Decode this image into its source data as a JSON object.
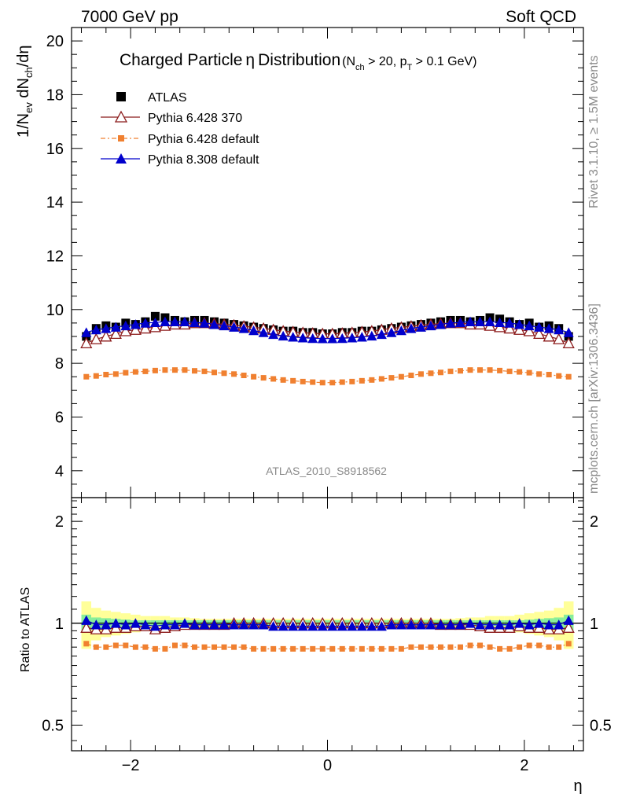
{
  "header": {
    "left": "7000 GeV pp",
    "right": "Soft QCD"
  },
  "side": {
    "rivet": "Rivet 3.1.10, ≥ 1.5M events",
    "mcplots": "mcplots.cern.ch [arXiv:1306.3436]"
  },
  "title": {
    "main": "Charged Particle",
    "eta": "η",
    "after": "Distribution",
    "cut_open": "(N",
    "cut_sub1": "ch",
    "cut_mid": " > 20, p",
    "cut_sub2": "T",
    "cut_end": " > 0.1 GeV)"
  },
  "watermark": "ATLAS_2010_S8918562",
  "legend": {
    "entries": [
      {
        "label": "ATLAS",
        "color": "#000000",
        "marker": "square"
      },
      {
        "label": "Pythia 6.428 370",
        "color": "#8b1a1a",
        "marker": "open-triangle"
      },
      {
        "label": "Pythia 6.428 default",
        "color": "#f08030",
        "marker": "small-square"
      },
      {
        "label": "Pythia 8.308 default",
        "color": "#0000cc",
        "marker": "triangle"
      }
    ]
  },
  "axes": {
    "ylabel_main": "1/N",
    "ylabel_sub_ev": "ev",
    "ylabel_dN": " dN",
    "ylabel_sub_ch": "ch",
    "ylabel_end": "/dη",
    "ylabel_ratio": "Ratio to ATLAS",
    "xlabel": "η"
  },
  "chart_data": {
    "type": "scatter",
    "x_range": [
      -2.6,
      2.6
    ],
    "main_y_range": [
      3,
      20.5
    ],
    "ratio_y_range": [
      0.42,
      2.35
    ],
    "ratio_log_scale": true,
    "main_y_ticks": [
      4,
      6,
      8,
      10,
      12,
      14,
      16,
      18,
      20
    ],
    "ratio_y_ticks": [
      0.5,
      1,
      2
    ],
    "ratio_tick_labels": [
      "0.5",
      "1",
      "2"
    ],
    "x_ticks": [
      -2,
      0,
      2
    ],
    "x_tick_labels": [
      "−2",
      "0",
      "2"
    ],
    "eta": [
      -2.45,
      -2.35,
      -2.25,
      -2.15,
      -2.05,
      -1.95,
      -1.85,
      -1.75,
      -1.65,
      -1.55,
      -1.45,
      -1.35,
      -1.25,
      -1.15,
      -1.05,
      -0.95,
      -0.85,
      -0.75,
      -0.65,
      -0.55,
      -0.45,
      -0.35,
      -0.25,
      -0.15,
      -0.05,
      0.05,
      0.15,
      0.25,
      0.35,
      0.45,
      0.55,
      0.65,
      0.75,
      0.85,
      0.95,
      1.05,
      1.15,
      1.25,
      1.35,
      1.45,
      1.55,
      1.65,
      1.75,
      1.85,
      1.95,
      2.05,
      2.15,
      2.25,
      2.35,
      2.45
    ],
    "series": [
      {
        "name": "ATLAS",
        "values": [
          9.0,
          9.3,
          9.4,
          9.35,
          9.5,
          9.45,
          9.55,
          9.75,
          9.7,
          9.6,
          9.55,
          9.6,
          9.6,
          9.55,
          9.5,
          9.45,
          9.4,
          9.35,
          9.3,
          9.25,
          9.2,
          9.2,
          9.15,
          9.15,
          9.1,
          9.1,
          9.15,
          9.15,
          9.2,
          9.2,
          9.25,
          9.3,
          9.35,
          9.4,
          9.45,
          9.5,
          9.55,
          9.6,
          9.6,
          9.55,
          9.6,
          9.7,
          9.65,
          9.55,
          9.45,
          9.5,
          9.35,
          9.4,
          9.3,
          9.0
        ]
      },
      {
        "name": "Pythia 6.428 370",
        "values": [
          8.75,
          8.9,
          9.0,
          9.1,
          9.2,
          9.25,
          9.3,
          9.35,
          9.4,
          9.45,
          9.45,
          9.5,
          9.5,
          9.48,
          9.45,
          9.42,
          9.38,
          9.34,
          9.3,
          9.25,
          9.2,
          9.17,
          9.14,
          9.12,
          9.1,
          9.1,
          9.12,
          9.14,
          9.17,
          9.2,
          9.25,
          9.3,
          9.34,
          9.38,
          9.42,
          9.45,
          9.48,
          9.5,
          9.5,
          9.45,
          9.45,
          9.4,
          9.35,
          9.3,
          9.25,
          9.2,
          9.1,
          9.0,
          8.9,
          8.75
        ]
      },
      {
        "name": "Pythia 6.428 default",
        "values": [
          7.5,
          7.53,
          7.58,
          7.6,
          7.65,
          7.68,
          7.7,
          7.73,
          7.75,
          7.75,
          7.75,
          7.72,
          7.7,
          7.66,
          7.63,
          7.6,
          7.55,
          7.5,
          7.46,
          7.42,
          7.38,
          7.35,
          7.32,
          7.3,
          7.28,
          7.28,
          7.3,
          7.32,
          7.35,
          7.38,
          7.42,
          7.46,
          7.5,
          7.55,
          7.6,
          7.63,
          7.66,
          7.7,
          7.72,
          7.75,
          7.75,
          7.75,
          7.73,
          7.7,
          7.68,
          7.65,
          7.6,
          7.58,
          7.53,
          7.5
        ]
      },
      {
        "name": "Pythia 8.308 default",
        "values": [
          9.15,
          9.25,
          9.3,
          9.35,
          9.4,
          9.45,
          9.5,
          9.52,
          9.55,
          9.55,
          9.55,
          9.52,
          9.5,
          9.45,
          9.4,
          9.35,
          9.3,
          9.22,
          9.15,
          9.08,
          9.02,
          8.98,
          8.95,
          8.93,
          8.92,
          8.92,
          8.93,
          8.95,
          8.98,
          9.02,
          9.08,
          9.15,
          9.22,
          9.3,
          9.35,
          9.4,
          9.45,
          9.5,
          9.52,
          9.55,
          9.55,
          9.55,
          9.52,
          9.5,
          9.45,
          9.4,
          9.35,
          9.3,
          9.25,
          9.15
        ]
      }
    ],
    "ratio_series": [
      {
        "name": "Pythia 6.428 370",
        "values": [
          0.97,
          0.96,
          0.96,
          0.97,
          0.97,
          0.98,
          0.98,
          0.96,
          0.97,
          0.98,
          0.99,
          0.99,
          0.99,
          0.99,
          0.99,
          1.0,
          1.0,
          1.0,
          1.0,
          1.0,
          1.0,
          1.0,
          1.0,
          1.0,
          1.0,
          1.0,
          1.0,
          1.0,
          1.0,
          1.0,
          1.0,
          1.0,
          1.0,
          1.0,
          1.0,
          1.0,
          0.99,
          0.99,
          0.99,
          0.99,
          0.98,
          0.97,
          0.97,
          0.97,
          0.98,
          0.97,
          0.97,
          0.96,
          0.96,
          0.97
        ]
      },
      {
        "name": "Pythia 6.428 default",
        "values": [
          0.87,
          0.85,
          0.85,
          0.86,
          0.86,
          0.85,
          0.85,
          0.84,
          0.84,
          0.86,
          0.86,
          0.85,
          0.85,
          0.85,
          0.85,
          0.85,
          0.85,
          0.84,
          0.84,
          0.84,
          0.84,
          0.84,
          0.84,
          0.84,
          0.84,
          0.84,
          0.84,
          0.84,
          0.84,
          0.84,
          0.84,
          0.84,
          0.84,
          0.85,
          0.85,
          0.85,
          0.85,
          0.85,
          0.85,
          0.86,
          0.86,
          0.85,
          0.84,
          0.84,
          0.85,
          0.86,
          0.86,
          0.85,
          0.85,
          0.87
        ]
      },
      {
        "name": "Pythia 8.308 default",
        "values": [
          1.02,
          0.99,
          0.99,
          1.0,
          0.99,
          1.0,
          0.99,
          0.98,
          0.99,
          0.99,
          1.0,
          0.99,
          0.99,
          0.99,
          0.99,
          0.99,
          0.99,
          0.99,
          0.99,
          0.98,
          0.98,
          0.98,
          0.98,
          0.98,
          0.98,
          0.98,
          0.98,
          0.98,
          0.98,
          0.98,
          0.98,
          0.99,
          0.99,
          0.99,
          0.99,
          0.99,
          0.99,
          0.99,
          0.99,
          1.0,
          0.99,
          0.99,
          0.99,
          0.99,
          1.0,
          0.99,
          1.0,
          0.99,
          0.99,
          1.02
        ]
      }
    ],
    "uncertainty_band": {
      "inner_half_width": [
        0.06,
        0.04,
        0.035,
        0.03,
        0.025,
        0.02,
        0.02,
        0.02,
        0.02,
        0.02,
        0.02,
        0.02,
        0.02,
        0.02,
        0.02,
        0.02,
        0.02,
        0.02,
        0.02,
        0.02,
        0.02,
        0.02,
        0.02,
        0.02,
        0.02,
        0.02,
        0.02,
        0.02,
        0.02,
        0.02,
        0.02,
        0.02,
        0.02,
        0.02,
        0.02,
        0.02,
        0.02,
        0.02,
        0.02,
        0.02,
        0.02,
        0.02,
        0.02,
        0.02,
        0.02,
        0.025,
        0.03,
        0.035,
        0.04,
        0.06
      ],
      "outer_half_width": [
        0.16,
        0.11,
        0.09,
        0.08,
        0.07,
        0.06,
        0.05,
        0.05,
        0.05,
        0.04,
        0.04,
        0.035,
        0.03,
        0.03,
        0.03,
        0.03,
        0.03,
        0.03,
        0.03,
        0.03,
        0.03,
        0.03,
        0.03,
        0.03,
        0.03,
        0.03,
        0.03,
        0.03,
        0.03,
        0.03,
        0.03,
        0.03,
        0.03,
        0.03,
        0.03,
        0.03,
        0.03,
        0.03,
        0.035,
        0.04,
        0.04,
        0.05,
        0.05,
        0.05,
        0.06,
        0.07,
        0.08,
        0.09,
        0.11,
        0.16
      ],
      "inner_color": "#88ee99",
      "outer_color": "#ffff99"
    }
  }
}
